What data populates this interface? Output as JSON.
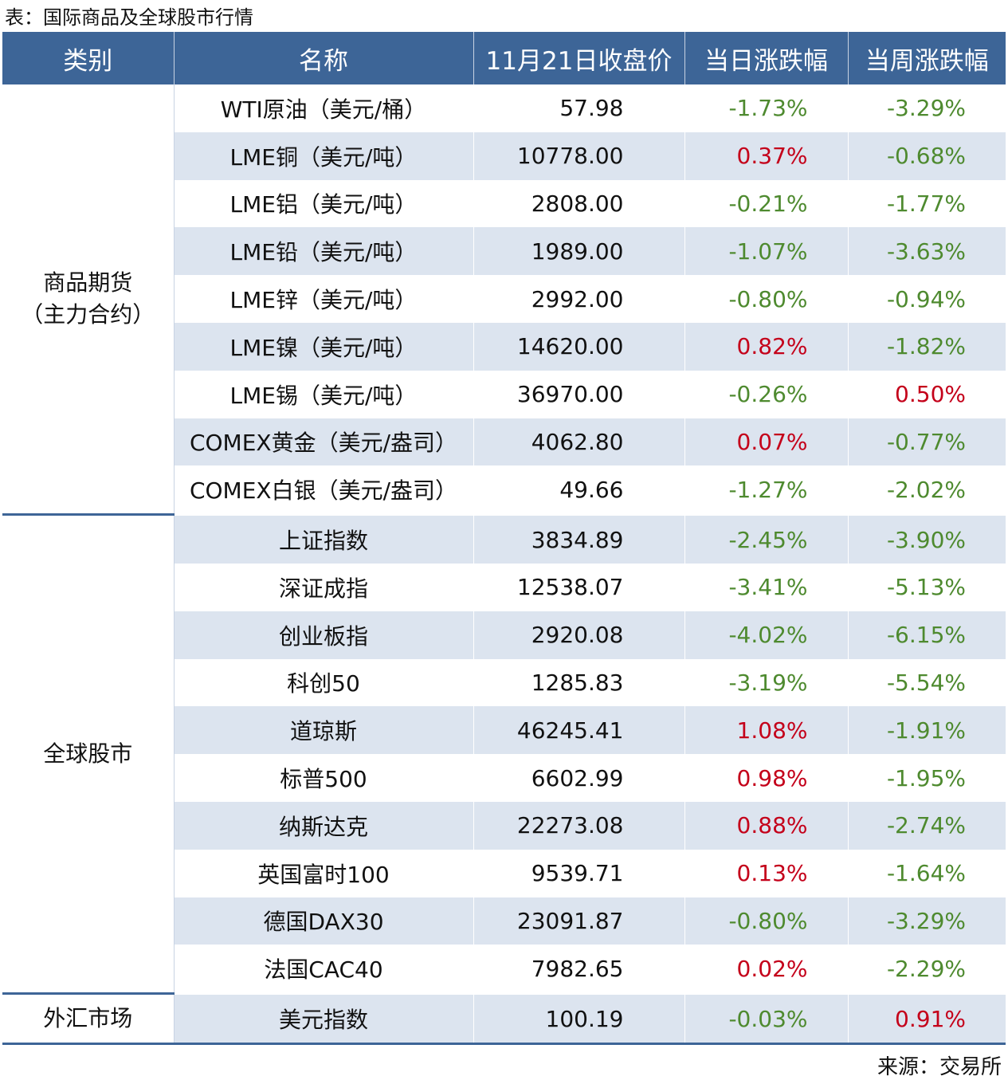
{
  "title": "表：国际商品及全球股市行情",
  "table": {
    "header": [
      "类别",
      "名称",
      "11月21日收盘价",
      "当日涨跌幅",
      "当周涨跌幅"
    ],
    "groups": [
      {
        "category": [
          "商品期货",
          "（主力合约）"
        ],
        "rows": [
          [
            "WTI原油（美元/桶）",
            "57.98",
            "-1.73%",
            "-3.29%"
          ],
          [
            "LME铜（美元/吨）",
            "10778.00",
            "0.37%",
            "-0.68%"
          ],
          [
            "LME铝（美元/吨）",
            "2808.00",
            "-0.21%",
            "-1.77%"
          ],
          [
            "LME铅（美元/吨）",
            "1989.00",
            "-1.07%",
            "-3.63%"
          ],
          [
            "LME锌（美元/吨）",
            "2992.00",
            "-0.80%",
            "-0.94%"
          ],
          [
            "LME镍（美元/吨）",
            "14620.00",
            "0.82%",
            "-1.82%"
          ],
          [
            "LME锡（美元/吨）",
            "36970.00",
            "-0.26%",
            "0.50%"
          ],
          [
            "COMEX黄金（美元/盎司）",
            "4062.80",
            "0.07%",
            "-0.77%"
          ],
          [
            "COMEX白银（美元/盎司）",
            "49.66",
            "-1.27%",
            "-2.02%"
          ]
        ]
      },
      {
        "category": [
          "全球股市"
        ],
        "rows": [
          [
            "上证指数",
            "3834.89",
            "-2.45%",
            "-3.90%"
          ],
          [
            "深证成指",
            "12538.07",
            "-3.41%",
            "-5.13%"
          ],
          [
            "创业板指",
            "2920.08",
            "-4.02%",
            "-6.15%"
          ],
          [
            "科创50",
            "1285.83",
            "-3.19%",
            "-5.54%"
          ],
          [
            "道琼斯",
            "46245.41",
            "1.08%",
            "-1.91%"
          ],
          [
            "标普500",
            "6602.99",
            "0.98%",
            "-1.95%"
          ],
          [
            "纳斯达克",
            "22273.08",
            "0.88%",
            "-2.74%"
          ],
          [
            "英国富时100",
            "9539.71",
            "0.13%",
            "-1.64%"
          ],
          [
            "德国DAX30",
            "23091.87",
            "-0.80%",
            "-3.29%"
          ],
          [
            "法国CAC40",
            "7982.65",
            "0.02%",
            "-2.29%"
          ]
        ]
      },
      {
        "category": [
          "外汇市场"
        ],
        "rows": [
          [
            "美元指数",
            "100.19",
            "-0.03%",
            "0.91%"
          ]
        ]
      }
    ]
  },
  "source": "来源：交易所"
}
